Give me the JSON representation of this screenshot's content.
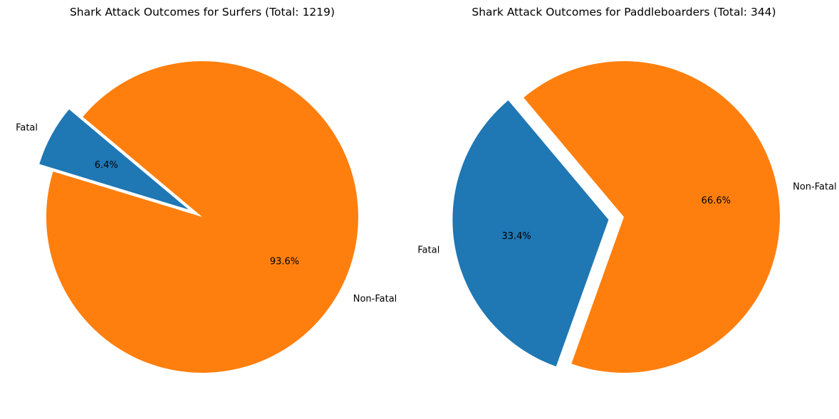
{
  "chart_data": [
    {
      "type": "pie",
      "title": "Shark Attack Outcomes for Surfers (Total: 1219)",
      "categories": [
        "Fatal",
        "Non-Fatal"
      ],
      "values": [
        78,
        1141
      ],
      "percent_labels": [
        "6.4%",
        "93.6%"
      ],
      "colors": [
        "#1f77b4",
        "#ff7f0e"
      ],
      "exploded": [
        true,
        false
      ]
    },
    {
      "type": "pie",
      "title": "Shark Attack Outcomes for Paddleboarders (Total: 344)",
      "categories": [
        "Fatal",
        "Non-Fatal"
      ],
      "values": [
        115,
        229
      ],
      "percent_labels": [
        "33.4%",
        "66.6%"
      ],
      "colors": [
        "#1f77b4",
        "#ff7f0e"
      ],
      "exploded": [
        true,
        false
      ]
    }
  ]
}
